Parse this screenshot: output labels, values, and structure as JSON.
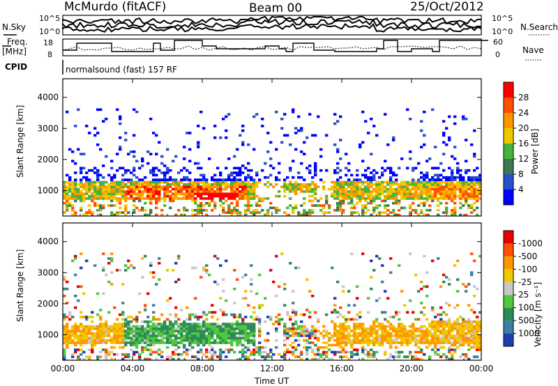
{
  "header": {
    "station": "McMurdo (fitACF)",
    "beam": "Beam 00",
    "date": "25/Oct/2012"
  },
  "top_panels": {
    "nsky_label": "N.Sky",
    "nsearch_label": "N.Search",
    "nsky_ticks": [
      "10^5",
      "10^0"
    ],
    "nsearch_ticks": [
      "10^5",
      "10^0"
    ],
    "freq_label_1": "Freq.",
    "freq_label_2": "[MHz]",
    "freq_ticks": [
      "18",
      "8"
    ],
    "nave_label": "Nave",
    "nave_ticks": [
      "60",
      "0"
    ],
    "cpid_label": "CPID",
    "cpid_text": "normalsound (fast) 157 RF"
  },
  "chart_data": [
    {
      "type": "heatmap",
      "name": "power",
      "ylabel": "Slant Range [km]",
      "yticks": [
        1000,
        2000,
        3000,
        4000
      ],
      "ylim": [
        180,
        4600
      ],
      "x_ticks": [
        "00:00",
        "04:00",
        "08:00",
        "12:00",
        "16:00",
        "20:00",
        "00:00"
      ],
      "colorbar": {
        "label": "Power [dB]",
        "ticks": [
          "4",
          "8",
          "12",
          "16",
          "20",
          "24",
          "28"
        ],
        "colors": [
          "#0000ff",
          "#2850c8",
          "#3c7850",
          "#46b43c",
          "#f0c800",
          "#ff9600",
          "#ff5000",
          "#ff0000"
        ]
      }
    },
    {
      "type": "heatmap",
      "name": "velocity",
      "xlabel": "Time UT",
      "ylabel": "Slant Range [km]",
      "yticks": [
        1000,
        2000,
        3000,
        4000
      ],
      "ylim": [
        180,
        4600
      ],
      "x_ticks": [
        "00:00",
        "04:00",
        "08:00",
        "12:00",
        "16:00",
        "20:00",
        "00:00"
      ],
      "colorbar": {
        "label": "Velocity [m s⁻¹]",
        "ticks": [
          "1000",
          "500",
          "100",
          "25",
          "-25",
          "-100",
          "-500",
          "-1000"
        ],
        "colors": [
          "#1e3cb4",
          "#3c82a0",
          "#2e8b57",
          "#50c83c",
          "#c8c8c8",
          "#f0c800",
          "#ff9600",
          "#ff5000",
          "#e60000"
        ]
      }
    }
  ]
}
